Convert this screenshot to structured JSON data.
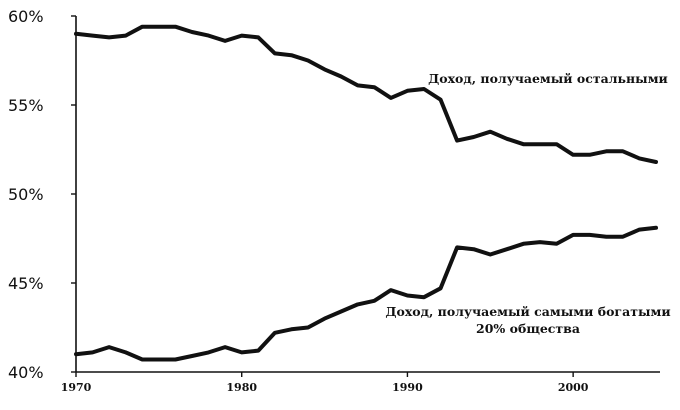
{
  "chart_data": {
    "type": "line",
    "x": [
      1970,
      1971,
      1972,
      1973,
      1974,
      1975,
      1976,
      1977,
      1978,
      1979,
      1980,
      1981,
      1982,
      1983,
      1984,
      1985,
      1986,
      1987,
      1988,
      1989,
      1990,
      1991,
      1992,
      1993,
      1994,
      1995,
      1996,
      1997,
      1998,
      1999,
      2000,
      2001,
      2002,
      2003,
      2004,
      2005
    ],
    "series": [
      {
        "name": "Доход, получаемый остальными",
        "values": [
          59.0,
          58.9,
          58.8,
          58.9,
          59.4,
          59.4,
          59.4,
          59.1,
          58.9,
          58.6,
          58.9,
          58.8,
          57.9,
          57.8,
          57.5,
          57.0,
          56.6,
          56.1,
          56.0,
          55.4,
          55.8,
          55.9,
          55.3,
          53.0,
          53.2,
          53.5,
          53.1,
          52.8,
          52.8,
          52.8,
          52.2,
          52.2,
          52.4,
          52.4,
          52.0,
          51.8
        ]
      },
      {
        "name": "Доход, получаемый самыми богатыми 20% общества",
        "values": [
          41.0,
          41.1,
          41.4,
          41.1,
          40.7,
          40.7,
          40.7,
          40.9,
          41.1,
          41.4,
          41.1,
          41.2,
          42.2,
          42.4,
          42.5,
          43.0,
          43.4,
          43.8,
          44.0,
          44.6,
          44.3,
          44.2,
          44.7,
          47.0,
          46.9,
          46.6,
          46.9,
          47.2,
          47.3,
          47.2,
          47.7,
          47.7,
          47.6,
          47.6,
          48.0,
          48.1
        ]
      }
    ],
    "ylim": [
      40,
      60
    ],
    "xlim": [
      1970,
      2005
    ],
    "y_ticks": [
      40,
      45,
      50,
      55,
      60
    ],
    "y_tick_labels": [
      "40%",
      "45%",
      "50%",
      "55%",
      "60%"
    ],
    "x_ticks": [
      1970,
      1980,
      1990,
      2000
    ],
    "x_tick_labels": [
      "1970",
      "1980",
      "1990",
      "2000"
    ],
    "annotations": [
      {
        "lines": [
          "Доход, получаемый остальными"
        ]
      },
      {
        "lines": [
          "Доход, получаемый самыми богатыми",
          "20% общества"
        ]
      }
    ],
    "grid": false,
    "legend": "none",
    "line_color": "#111111"
  }
}
